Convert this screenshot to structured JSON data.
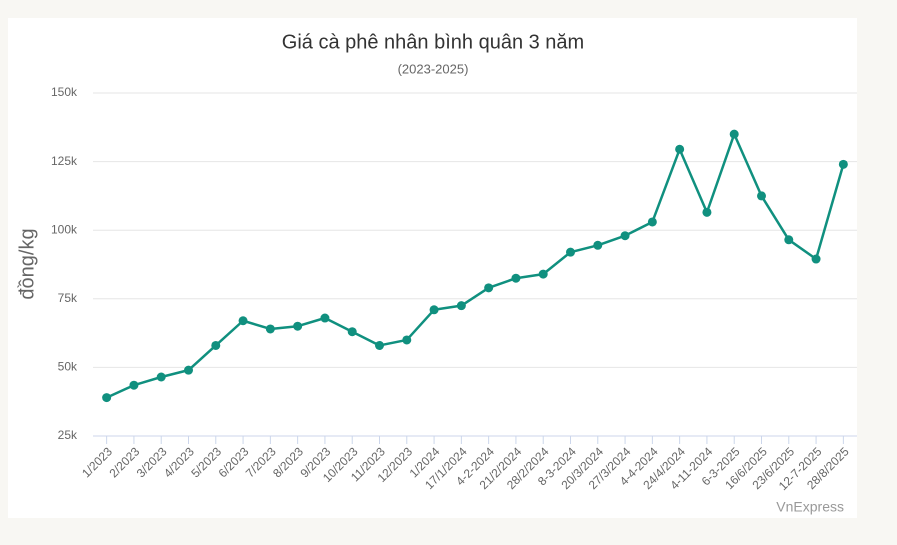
{
  "chart_data": {
    "type": "line",
    "title": "Giá cà phê nhân bình quân 3 năm",
    "subtitle": "(2023-2025)",
    "y_label": "đồng/kg",
    "source": "VnExpress",
    "categories": [
      "1/2023",
      "2/2023",
      "3/2023",
      "4/2023",
      "5/2023",
      "6/2023",
      "7/2023",
      "8/2023",
      "9/2023",
      "10/2023",
      "11/2023",
      "12/2023",
      "1/2024",
      "17/1/2024",
      "4-2-2024",
      "21/2/2024",
      "28/2/2024",
      "8-3-2024",
      "20/3/2024",
      "27/3/2024",
      "4-4-2024",
      "24/4/2024",
      "4-11-2024",
      "6-3-2025",
      "16/6/2025",
      "23/6/2025",
      "12-7-2025",
      "28/8/2025"
    ],
    "series": [
      {
        "name": "Giá cà phê",
        "color": "#10907f",
        "values": [
          39000,
          43500,
          46500,
          49000,
          58000,
          67000,
          64000,
          65000,
          68000,
          63000,
          58000,
          60000,
          71000,
          72500,
          79000,
          82500,
          84000,
          92000,
          94500,
          98000,
          103000,
          129500,
          106500,
          135000,
          112500,
          96500,
          89500,
          124000
        ]
      }
    ],
    "ylim": [
      25000,
      150000
    ],
    "yticks": [
      {
        "value": 25000,
        "label": "25k"
      },
      {
        "value": 50000,
        "label": "50k"
      },
      {
        "value": 75000,
        "label": "75k"
      },
      {
        "value": 100000,
        "label": "100k"
      },
      {
        "value": 125000,
        "label": "125k"
      },
      {
        "value": 150000,
        "label": "150k"
      }
    ],
    "grid": true
  }
}
